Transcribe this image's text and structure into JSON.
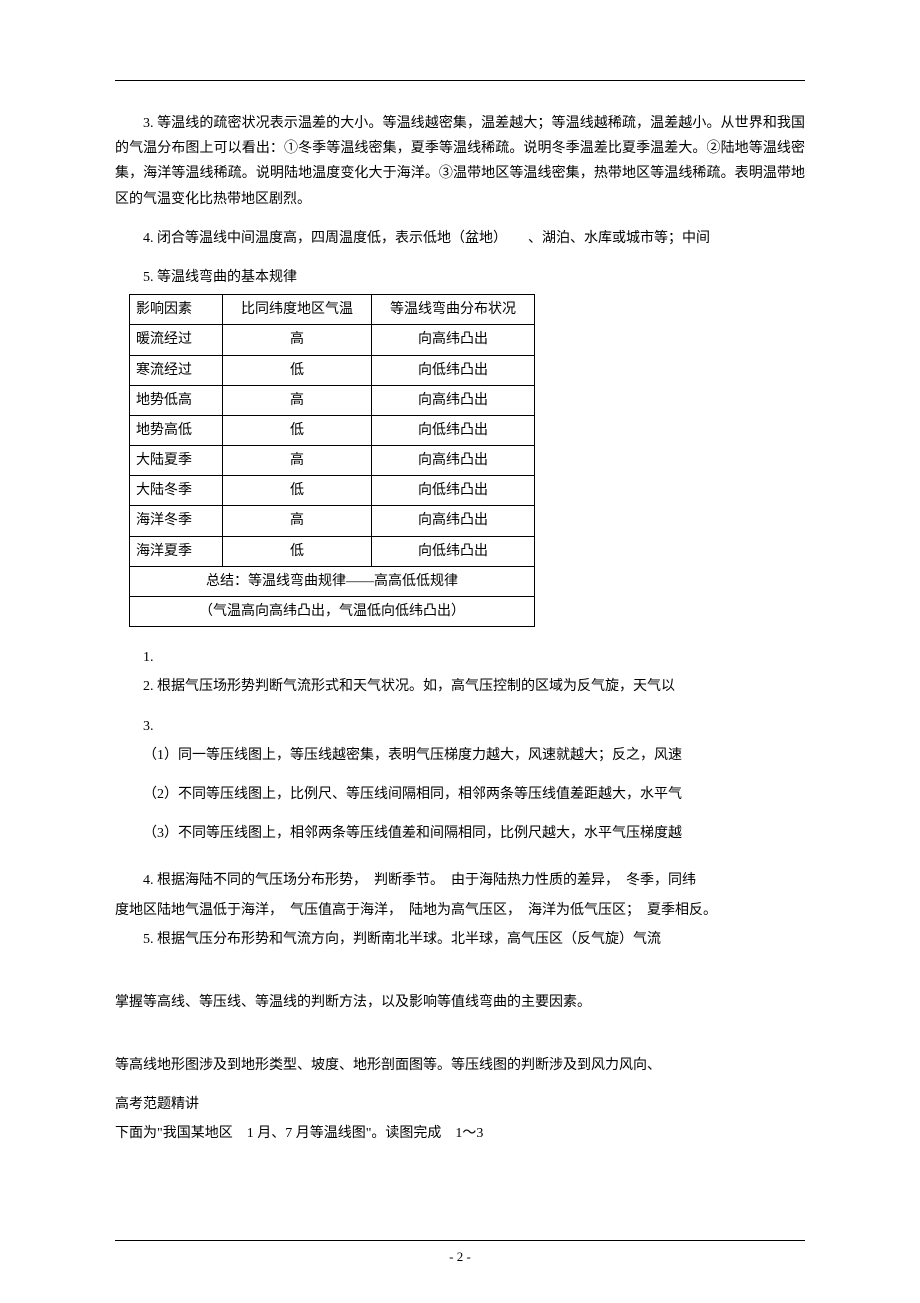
{
  "page_number": "- 2 -",
  "paragraphs": {
    "p3": "3. 等温线的疏密状况表示温差的大小。等温线越密集，温差越大；等温线越稀疏，温差越小。从世界和我国的气温分布图上可以看出：①冬季等温线密集，夏季等温线稀疏。说明冬季温差比夏季温差大。②陆地等温线密集，海洋等温线稀疏。说明陆地温度变化大于海洋。③温带地区等温线密集，热带地区等温线稀疏。表明温带地区的气温变化比热带地区剧烈。",
    "p4": "4. 闭合等温线中间温度高，四周温度低，表示低地（盆地）　　、湖泊、水库或城市等；中间",
    "p5": "5. 等温线弯曲的基本规律",
    "s1": "1.",
    "s2": "2. 根据气压场形势判断气流形式和天气状况。如，高气压控制的区域为反气旋，天气以",
    "s3": "3.",
    "s3_1": "（1）同一等压线图上，等压线越密集，表明气压梯度力越大，风速就越大；反之，风速",
    "s3_2": "（2）不同等压线图上，比例尺、等压线间隔相同，相邻两条等压线值差距越大，水平气",
    "s3_3": "（3）不同等压线图上，相邻两条等压线值差和间隔相同，比例尺越大，水平气压梯度越",
    "s4a": "4. 根据海陆不同的气压场分布形势，　判断季节。　由于海陆热力性质的差异，　冬季，同纬",
    "s4b": "度地区陆地气温低于海洋，　气压值高于海洋，　陆地为高气压区，　海洋为低气压区；　夏季相反。",
    "s5": "5. 根据气压分布形势和气流方向，判断南北半球。北半球，高气压区（反气旋）气流",
    "end1": "掌握等高线、等压线、等温线的判断方法，以及影响等值线弯曲的主要因素。",
    "end2": "等高线地形图涉及到地形类型、坡度、地形剖面图等。等压线图的判断涉及到风力风向、",
    "end3": "高考范题精讲",
    "end4": "下面为\"我国某地区　1 月、7 月等温线图\"。读图完成　1～3"
  },
  "table": {
    "headers": [
      "影响因素",
      "比同纬度地区气温",
      "等温线弯曲分布状况"
    ],
    "rows": [
      [
        "暖流经过",
        "高",
        "向高纬凸出"
      ],
      [
        "寒流经过",
        "低",
        "向低纬凸出"
      ],
      [
        "地势低高",
        "高",
        "向高纬凸出"
      ],
      [
        "地势高低",
        "低",
        "向低纬凸出"
      ],
      [
        "大陆夏季",
        "高",
        "向高纬凸出"
      ],
      [
        "大陆冬季",
        "低",
        "向低纬凸出"
      ],
      [
        "海洋冬季",
        "高",
        "向高纬凸出"
      ],
      [
        "海洋夏季",
        "低",
        "向低纬凸出"
      ]
    ],
    "summary1": "总结：等温线弯曲规律——高高低低规律",
    "summary2": "（气温高向高纬凸出，气温低向低纬凸出）"
  }
}
